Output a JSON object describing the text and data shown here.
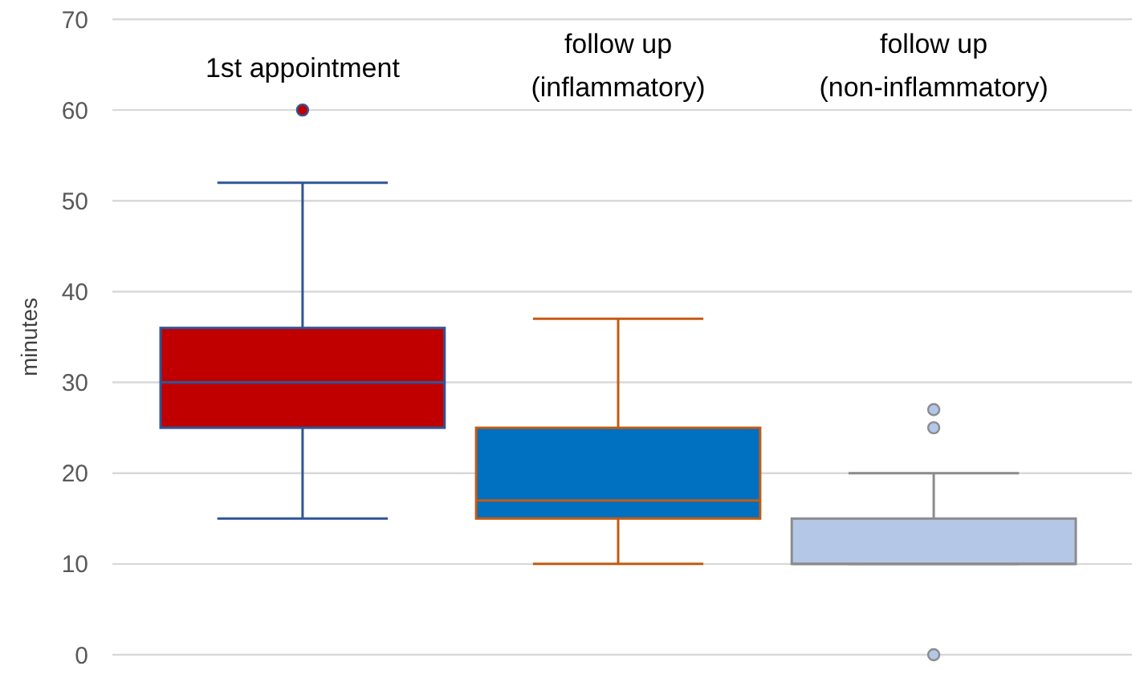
{
  "chart_data": {
    "type": "box",
    "ylabel": "minutes",
    "categories": [
      "1st appointment",
      "follow up\n(inflammatory)",
      "follow up\n(non-inflammatory)"
    ],
    "colors": [
      "#c00000",
      "#0070c0",
      "#b4c7e7"
    ],
    "boxes": [
      {
        "low": 15,
        "q1": 25,
        "median": 30,
        "q3": 36,
        "high": 52,
        "outliers": [
          60
        ]
      },
      {
        "low": 10,
        "q1": 15,
        "median": 17,
        "q3": 25,
        "high": 37
      },
      {
        "low": 10,
        "q1": 10,
        "median": 10,
        "q3": 15,
        "high": 20,
        "outliers": [
          27,
          25,
          0
        ]
      }
    ],
    "ylim": [
      0,
      70
    ],
    "yticks": [
      0,
      10,
      20,
      30,
      40,
      50,
      60,
      70
    ],
    "grid": "y"
  }
}
